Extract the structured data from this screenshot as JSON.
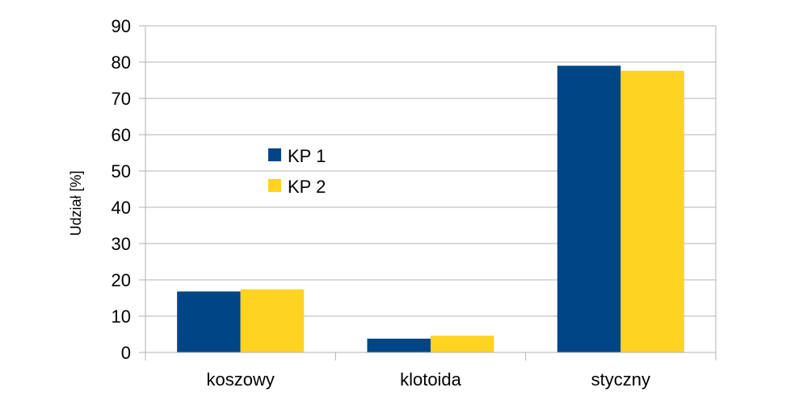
{
  "chart_data": {
    "type": "bar",
    "categories": [
      "koszowy",
      "klotoida",
      "styczny"
    ],
    "series": [
      {
        "name": "KP 1",
        "values": [
          16.8,
          3.8,
          79.0
        ],
        "color": "#004586"
      },
      {
        "name": "KP 2",
        "values": [
          17.4,
          4.6,
          77.6
        ],
        "color": "#ffd320"
      }
    ],
    "title": "",
    "xlabel": "",
    "ylabel": "Udział [%]",
    "ylim": [
      0,
      90
    ],
    "yticks": [
      "0",
      "10",
      "20",
      "30",
      "40",
      "50",
      "60",
      "70",
      "80",
      "90"
    ],
    "grid": true,
    "legend_position": "inside-left"
  }
}
